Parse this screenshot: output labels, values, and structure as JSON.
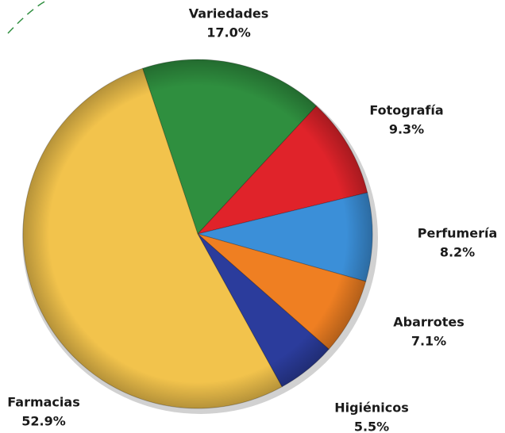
{
  "chart_data": {
    "type": "pie",
    "categories": [
      "Variedades",
      "Fotografía",
      "Perfumería",
      "Abarrotes",
      "Higiénicos",
      "Farmacias"
    ],
    "values": [
      17.0,
      9.3,
      8.2,
      7.1,
      5.5,
      52.9
    ],
    "value_labels": [
      "17.0%",
      "9.3%",
      "8.2%",
      "7.1%",
      "5.5%",
      "52.9%"
    ],
    "colors": [
      "#2f8f3f",
      "#e0232a",
      "#3b8fd8",
      "#ef7f22",
      "#2b3c9c",
      "#f2c34c"
    ]
  }
}
